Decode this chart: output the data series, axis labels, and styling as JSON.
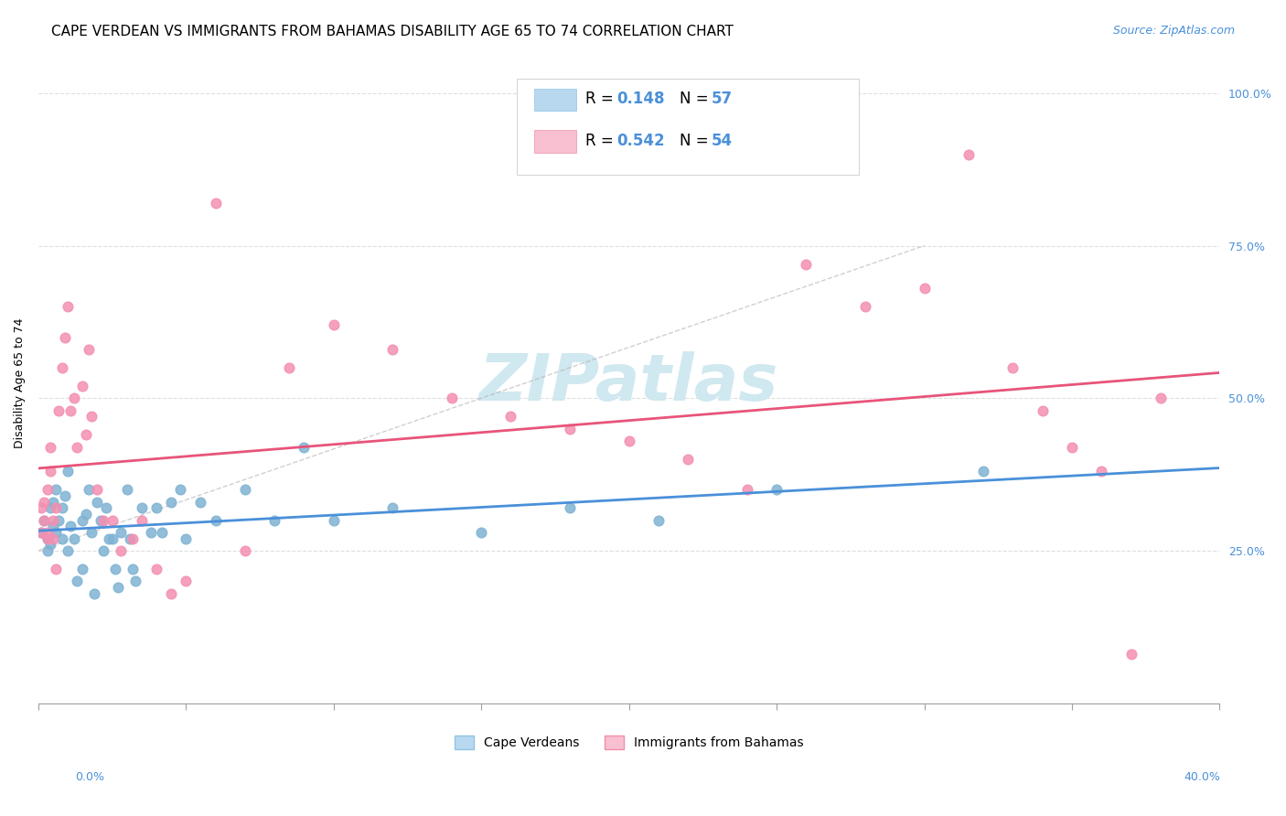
{
  "title": "CAPE VERDEAN VS IMMIGRANTS FROM BAHAMAS DISABILITY AGE 65 TO 74 CORRELATION CHART",
  "source": "Source: ZipAtlas.com",
  "ylabel": "Disability Age 65 to 74",
  "ytick_values": [
    0.0,
    0.25,
    0.5,
    0.75,
    1.0
  ],
  "ytick_labels": [
    "",
    "25.0%",
    "50.0%",
    "75.0%",
    "100.0%"
  ],
  "xmin": 0.0,
  "xmax": 0.4,
  "ymin": 0.0,
  "ymax": 1.05,
  "cape_verdean_color": "#7fb3d3",
  "bahamas_color": "#f48fb1",
  "trendline_blue_color": "#4a90d9",
  "trendline_pink_color": "#e8547a",
  "watermark_text": "ZIPatlas",
  "watermark_color": "#d0e8f0",
  "blue_scatter_x": [
    0.001,
    0.002,
    0.003,
    0.003,
    0.004,
    0.004,
    0.005,
    0.005,
    0.006,
    0.006,
    0.007,
    0.008,
    0.008,
    0.009,
    0.01,
    0.01,
    0.011,
    0.012,
    0.013,
    0.015,
    0.015,
    0.016,
    0.017,
    0.018,
    0.019,
    0.02,
    0.021,
    0.022,
    0.023,
    0.024,
    0.025,
    0.026,
    0.027,
    0.028,
    0.03,
    0.031,
    0.032,
    0.033,
    0.035,
    0.038,
    0.04,
    0.042,
    0.045,
    0.048,
    0.05,
    0.055,
    0.06,
    0.07,
    0.08,
    0.09,
    0.1,
    0.12,
    0.15,
    0.18,
    0.21,
    0.25,
    0.32
  ],
  "blue_scatter_y": [
    0.28,
    0.3,
    0.25,
    0.27,
    0.32,
    0.26,
    0.33,
    0.29,
    0.35,
    0.28,
    0.3,
    0.27,
    0.32,
    0.34,
    0.38,
    0.25,
    0.29,
    0.27,
    0.2,
    0.3,
    0.22,
    0.31,
    0.35,
    0.28,
    0.18,
    0.33,
    0.3,
    0.25,
    0.32,
    0.27,
    0.27,
    0.22,
    0.19,
    0.28,
    0.35,
    0.27,
    0.22,
    0.2,
    0.32,
    0.28,
    0.32,
    0.28,
    0.33,
    0.35,
    0.27,
    0.33,
    0.3,
    0.35,
    0.3,
    0.42,
    0.3,
    0.32,
    0.28,
    0.32,
    0.3,
    0.35,
    0.38
  ],
  "pink_scatter_x": [
    0.001,
    0.001,
    0.002,
    0.002,
    0.003,
    0.003,
    0.003,
    0.004,
    0.004,
    0.005,
    0.005,
    0.006,
    0.006,
    0.007,
    0.008,
    0.009,
    0.01,
    0.011,
    0.012,
    0.013,
    0.015,
    0.016,
    0.017,
    0.018,
    0.02,
    0.022,
    0.025,
    0.028,
    0.032,
    0.035,
    0.04,
    0.045,
    0.05,
    0.06,
    0.07,
    0.085,
    0.1,
    0.12,
    0.14,
    0.16,
    0.18,
    0.2,
    0.22,
    0.24,
    0.26,
    0.28,
    0.3,
    0.315,
    0.33,
    0.34,
    0.35,
    0.36,
    0.37,
    0.38
  ],
  "pink_scatter_y": [
    0.28,
    0.32,
    0.3,
    0.33,
    0.27,
    0.35,
    0.28,
    0.42,
    0.38,
    0.3,
    0.27,
    0.32,
    0.22,
    0.48,
    0.55,
    0.6,
    0.65,
    0.48,
    0.5,
    0.42,
    0.52,
    0.44,
    0.58,
    0.47,
    0.35,
    0.3,
    0.3,
    0.25,
    0.27,
    0.3,
    0.22,
    0.18,
    0.2,
    0.82,
    0.25,
    0.55,
    0.62,
    0.58,
    0.5,
    0.47,
    0.45,
    0.43,
    0.4,
    0.35,
    0.72,
    0.65,
    0.68,
    0.9,
    0.55,
    0.48,
    0.42,
    0.38,
    0.08,
    0.5
  ],
  "title_fontsize": 11,
  "source_fontsize": 9,
  "axis_fontsize": 9,
  "legend_fontsize": 11
}
